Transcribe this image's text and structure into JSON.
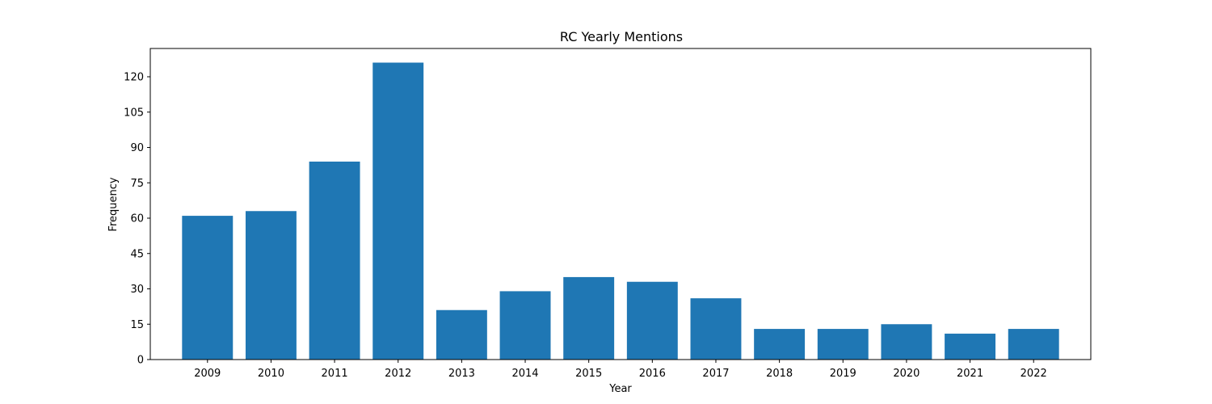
{
  "chart_data": {
    "type": "bar",
    "title": "RC Yearly Mentions",
    "xlabel": "Year",
    "ylabel": "Frequency",
    "categories": [
      "2009",
      "2010",
      "2011",
      "2012",
      "2013",
      "2014",
      "2015",
      "2016",
      "2017",
      "2018",
      "2019",
      "2020",
      "2021",
      "2022"
    ],
    "values": [
      61,
      63,
      84,
      126,
      21,
      29,
      35,
      33,
      26,
      13,
      13,
      15,
      11,
      13
    ],
    "ylim": [
      0,
      132
    ],
    "yticks": [
      0,
      15,
      30,
      45,
      60,
      75,
      90,
      105,
      120
    ],
    "bar_color": "#1f77b4",
    "grid": false,
    "legend": "none"
  }
}
